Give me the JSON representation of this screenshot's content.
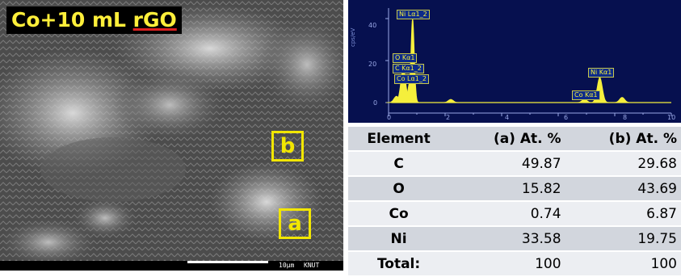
{
  "sem": {
    "title_prefix": "Co+10 mL ",
    "title_rgo": "rGO",
    "box_a": "a",
    "box_b": "b",
    "scale_text": "10μm",
    "org_text": "KNUT"
  },
  "eds": {
    "ylabel": "cps/eV",
    "yticks": [
      "40",
      "20",
      "0"
    ],
    "xticks": [
      "0",
      "2",
      "4",
      "6",
      "8",
      "10"
    ],
    "peak_labels": {
      "ni_la": "Ni Lα1_2",
      "o_ka": "O Kα1",
      "c_ka": "C Kα1_2",
      "co_la": "Co Lα1_2",
      "ni_ka": "Ni Kα1",
      "co_ka": "Co Kα1"
    },
    "colors": {
      "background": "#06104f",
      "spectrum": "#f5ef3c",
      "axis": "#9aa8e6"
    }
  },
  "chart_data": {
    "type": "area",
    "xlabel": "",
    "ylabel": "cps/eV",
    "xlim": [
      0,
      10
    ],
    "ylim": [
      -5,
      45
    ],
    "peaks": [
      {
        "x": 0.28,
        "y": 3
      },
      {
        "x": 0.52,
        "y": 16
      },
      {
        "x": 0.78,
        "y": 11
      },
      {
        "x": 0.85,
        "y": 40
      },
      {
        "x": 2.2,
        "y": 1.5
      },
      {
        "x": 6.93,
        "y": 1.5
      },
      {
        "x": 7.47,
        "y": 12
      },
      {
        "x": 8.26,
        "y": 2.5
      }
    ]
  },
  "table": {
    "headers": [
      "Element",
      "(a) At. %",
      "(b) At. %"
    ],
    "rows": [
      [
        "C",
        "49.87",
        "29.68"
      ],
      [
        "O",
        "15.82",
        "43.69"
      ],
      [
        "Co",
        "0.74",
        "6.87"
      ],
      [
        "Ni",
        "33.58",
        "19.75"
      ],
      [
        "Total:",
        "100",
        "100"
      ]
    ]
  }
}
